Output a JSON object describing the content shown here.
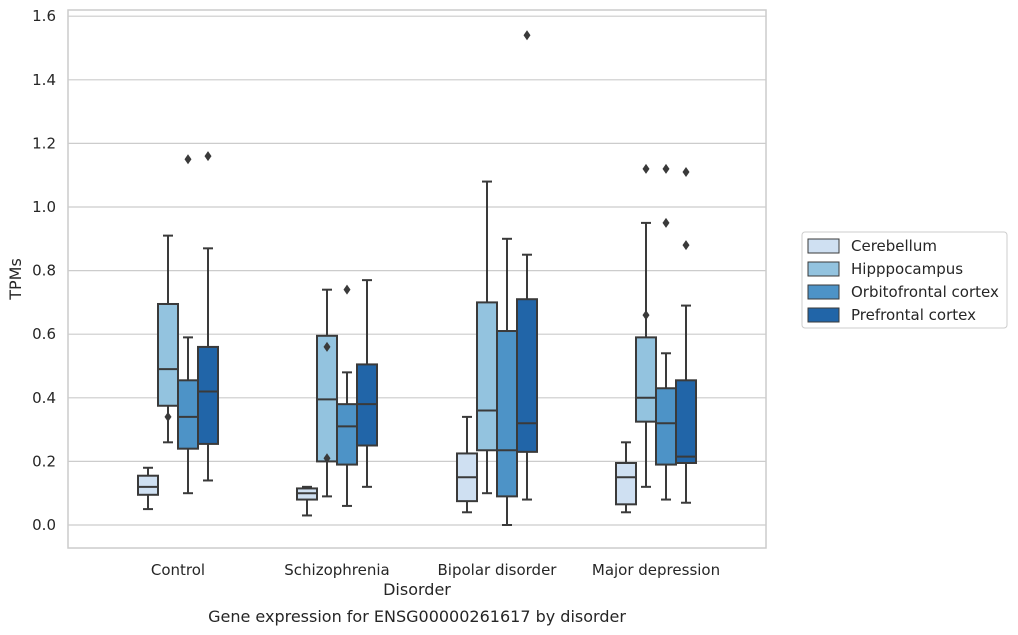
{
  "chart_data": {
    "type": "box",
    "title": "",
    "caption": "Gene expression for ENSG00000261617 by disorder",
    "xlabel": "Disorder",
    "ylabel": "TPMs",
    "ylim": [
      -0.075,
      1.62
    ],
    "yticks": [
      "0.0",
      "0.2",
      "0.4",
      "0.6",
      "0.8",
      "1.0",
      "1.2",
      "1.4",
      "1.6"
    ],
    "grid": "horizontal",
    "legend_position": "right",
    "categories": [
      "Control",
      "Schizophrenia",
      "Bipolar disorder",
      "Major depression"
    ],
    "series": [
      {
        "name": "Cerebellum",
        "color": "#cfe0f2",
        "boxes": [
          {
            "whisker_low": 0.05,
            "q1": 0.095,
            "median": 0.12,
            "q3": 0.155,
            "whisker_high": 0.18,
            "outliers": []
          },
          {
            "whisker_low": 0.03,
            "q1": 0.08,
            "median": 0.1,
            "q3": 0.115,
            "whisker_high": 0.12,
            "outliers": []
          },
          {
            "whisker_low": 0.04,
            "q1": 0.075,
            "median": 0.15,
            "q3": 0.225,
            "whisker_high": 0.34,
            "outliers": []
          },
          {
            "whisker_low": 0.04,
            "q1": 0.065,
            "median": 0.15,
            "q3": 0.195,
            "whisker_high": 0.26,
            "outliers": []
          }
        ]
      },
      {
        "name": "Hipppocampus",
        "color": "#93c3df",
        "boxes": [
          {
            "whisker_low": 0.26,
            "q1": 0.375,
            "median": 0.49,
            "q3": 0.695,
            "whisker_high": 0.91,
            "outliers": [
              0.34
            ]
          },
          {
            "whisker_low": 0.09,
            "q1": 0.2,
            "median": 0.395,
            "q3": 0.595,
            "whisker_high": 0.74,
            "outliers": [
              0.56,
              0.21
            ]
          },
          {
            "whisker_low": 0.1,
            "q1": 0.235,
            "median": 0.36,
            "q3": 0.7,
            "whisker_high": 1.08,
            "outliers": []
          },
          {
            "whisker_low": 0.12,
            "q1": 0.325,
            "median": 0.4,
            "q3": 0.59,
            "whisker_high": 0.95,
            "outliers": [
              0.66,
              1.12
            ]
          }
        ]
      },
      {
        "name": "Orbitofrontal cortex",
        "color": "#4d93c7",
        "boxes": [
          {
            "whisker_low": 0.1,
            "q1": 0.24,
            "median": 0.34,
            "q3": 0.455,
            "whisker_high": 0.59,
            "outliers": [
              1.15
            ]
          },
          {
            "whisker_low": 0.06,
            "q1": 0.19,
            "median": 0.31,
            "q3": 0.38,
            "whisker_high": 0.48,
            "outliers": [
              0.74
            ]
          },
          {
            "whisker_low": 0.0,
            "q1": 0.09,
            "median": 0.235,
            "q3": 0.61,
            "whisker_high": 0.9,
            "outliers": []
          },
          {
            "whisker_low": 0.08,
            "q1": 0.19,
            "median": 0.32,
            "q3": 0.43,
            "whisker_high": 0.54,
            "outliers": [
              0.95,
              1.12
            ]
          }
        ]
      },
      {
        "name": "Prefrontal cortex",
        "color": "#2165a8",
        "boxes": [
          {
            "whisker_low": 0.14,
            "q1": 0.255,
            "median": 0.42,
            "q3": 0.56,
            "whisker_high": 0.87,
            "outliers": [
              1.16
            ]
          },
          {
            "whisker_low": 0.12,
            "q1": 0.25,
            "median": 0.38,
            "q3": 0.505,
            "whisker_high": 0.77,
            "outliers": []
          },
          {
            "whisker_low": 0.08,
            "q1": 0.23,
            "median": 0.32,
            "q3": 0.71,
            "whisker_high": 0.85,
            "outliers": [
              1.54
            ]
          },
          {
            "whisker_low": 0.07,
            "q1": 0.195,
            "median": 0.215,
            "q3": 0.455,
            "whisker_high": 0.69,
            "outliers": [
              0.88,
              1.11
            ]
          }
        ]
      }
    ]
  }
}
